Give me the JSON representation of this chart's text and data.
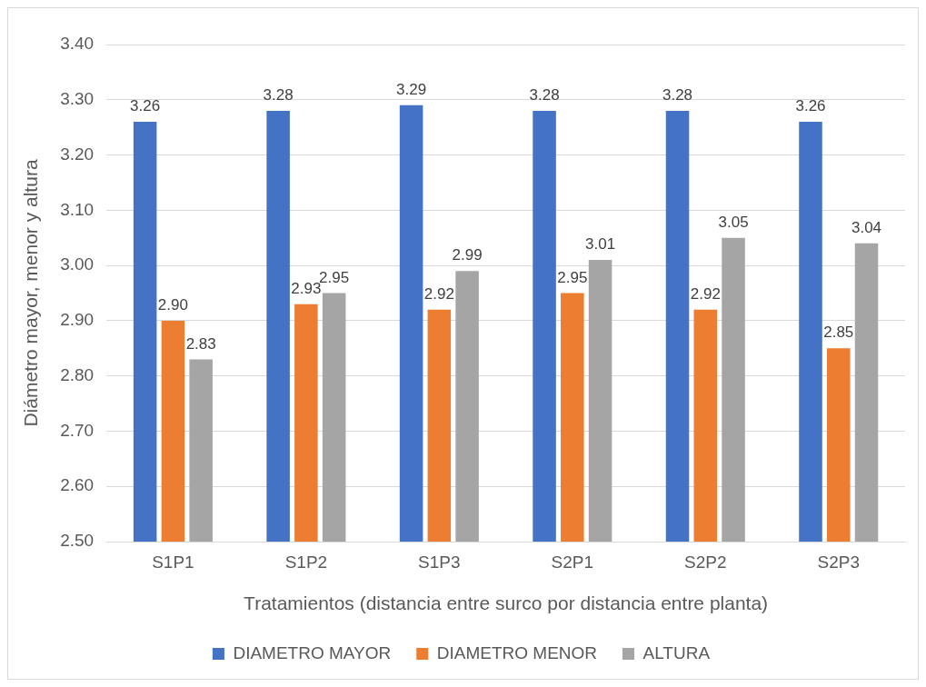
{
  "chart_data": {
    "type": "bar",
    "xlabel": "Tratamientos (distancia entre surco por distancia entre planta)",
    "ylabel": "Diámetro mayor, menor y altura",
    "categories": [
      "S1P1",
      "S1P2",
      "S1P3",
      "S2P1",
      "S2P2",
      "S2P3"
    ],
    "series": [
      {
        "name": "DIAMETRO MAYOR",
        "color": "#4472c4",
        "values": [
          3.26,
          3.28,
          3.29,
          3.28,
          3.28,
          3.26
        ],
        "value_labels": [
          "3.26",
          "3.28",
          "3.29",
          "3.28",
          "3.28",
          "3.26"
        ]
      },
      {
        "name": "DIAMETRO MENOR",
        "color": "#ed7d31",
        "values": [
          2.9,
          2.93,
          2.92,
          2.95,
          2.92,
          2.85
        ],
        "value_labels": [
          "2.90",
          "2.93",
          "2.92",
          "2.95",
          "2.92",
          "2.85"
        ]
      },
      {
        "name": "ALTURA",
        "color": "#a5a5a5",
        "values": [
          2.83,
          2.95,
          2.99,
          3.01,
          3.05,
          3.04
        ],
        "value_labels": [
          "2.83",
          "2.95",
          "2.99",
          "3.01",
          "3.05",
          "3.04"
        ]
      }
    ],
    "ylim": [
      2.5,
      3.4
    ],
    "yticks": [
      {
        "value": 2.5,
        "label": "2.50"
      },
      {
        "value": 2.6,
        "label": "2.60"
      },
      {
        "value": 2.7,
        "label": "2.70"
      },
      {
        "value": 2.8,
        "label": "2.80"
      },
      {
        "value": 2.9,
        "label": "2.90"
      },
      {
        "value": 3.0,
        "label": "3.00"
      },
      {
        "value": 3.1,
        "label": "3.10"
      },
      {
        "value": 3.2,
        "label": "3.20"
      },
      {
        "value": 3.3,
        "label": "3.30"
      },
      {
        "value": 3.4,
        "label": "3.40"
      }
    ],
    "grid": "y",
    "legend": "bottom"
  }
}
